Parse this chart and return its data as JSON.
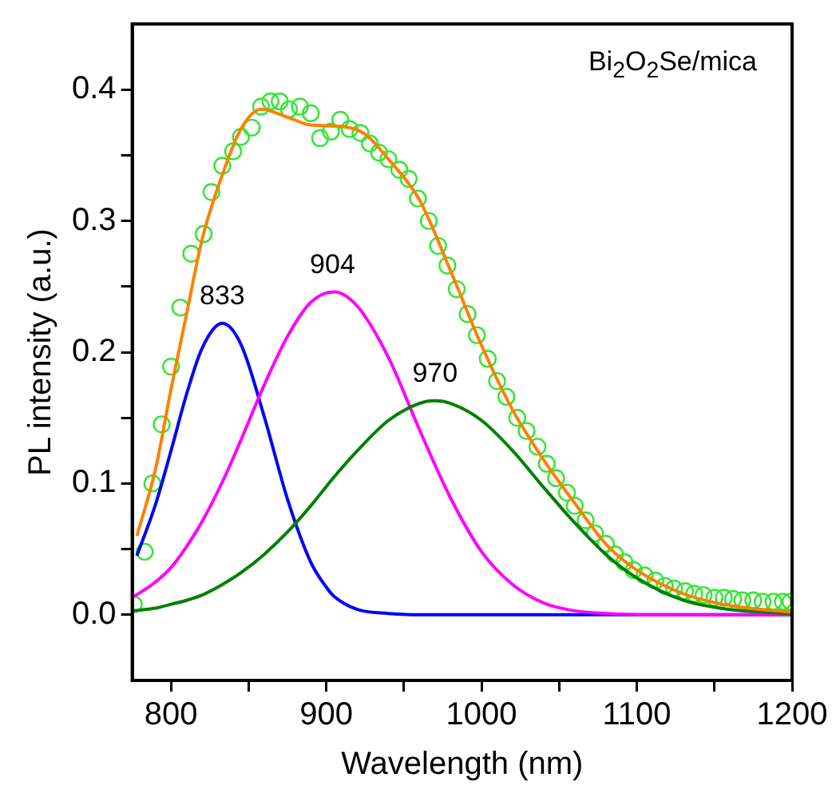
{
  "chart_data": {
    "type": "line",
    "xlabel": "Wavelength (nm)",
    "ylabel": "PL intensity (a.u.)",
    "xlim": [
      775,
      1200
    ],
    "ylim": [
      -0.05,
      0.45
    ],
    "xticks": [
      800,
      {
        "value": 850,
        "label": null
      },
      900,
      {
        "value": 950,
        "label": null
      },
      1000,
      {
        "value": 1050,
        "label": null
      },
      1100,
      {
        "value": 1150,
        "label": null
      },
      1200
    ],
    "yticks": [
      {
        "value": 0,
        "label": "0.0"
      },
      {
        "value": 0.05,
        "label": null
      },
      0.1,
      {
        "value": 0.15,
        "label": null
      },
      0.2,
      {
        "value": 0.25,
        "label": null
      },
      0.3,
      {
        "value": 0.35,
        "label": null
      },
      0.4
    ],
    "grid": false,
    "legend": false,
    "annotations": [
      "Bi$_{2}$O$_{2}$Se/mica",
      {
        "text": "833",
        "x": 833,
        "y": 0.222
      },
      {
        "text": "904",
        "x": 904,
        "y": 0.246
      },
      {
        "text": "970",
        "x": 970,
        "y": 0.163
      }
    ],
    "series": [
      {
        "type": "scatter",
        "marker": "circle",
        "color": "#33e633",
        "x": [
          776,
          783,
          788,
          794,
          800,
          806,
          813,
          821,
          826,
          833,
          840,
          845,
          852,
          858,
          864,
          870,
          876,
          883,
          890,
          896,
          903,
          909,
          915,
          922,
          928,
          934,
          940,
          947,
          953,
          959,
          966,
          972,
          978,
          984,
          991,
          997,
          1004,
          1010,
          1016,
          1023,
          1029,
          1036,
          1042,
          1048,
          1055,
          1060,
          1067,
          1073,
          1080,
          1086,
          1092,
          1098,
          1105,
          1112,
          1118,
          1124,
          1131,
          1137,
          1143,
          1150,
          1156,
          1162,
          1168,
          1175,
          1181,
          1188,
          1194,
          1199
        ],
        "values": [
          0.008,
          0.048,
          0.1,
          0.145,
          0.189,
          0.234,
          0.275,
          0.29,
          0.322,
          0.342,
          0.353,
          0.364,
          0.371,
          0.387,
          0.391,
          0.391,
          0.385,
          0.387,
          0.382,
          0.363,
          0.368,
          0.377,
          0.37,
          0.367,
          0.359,
          0.352,
          0.347,
          0.339,
          0.332,
          0.317,
          0.3,
          0.281,
          0.266,
          0.248,
          0.229,
          0.213,
          0.195,
          0.178,
          0.166,
          0.15,
          0.14,
          0.128,
          0.115,
          0.104,
          0.093,
          0.083,
          0.072,
          0.062,
          0.054,
          0.046,
          0.04,
          0.034,
          0.03,
          0.026,
          0.022,
          0.02,
          0.018,
          0.016,
          0.015,
          0.013,
          0.013,
          0.012,
          0.011,
          0.011,
          0.01,
          0.01,
          0.01,
          0.01
        ]
      },
      {
        "marker": "none",
        "color": "#0000ff",
        "x": [
          778,
          790,
          800,
          810,
          820,
          833,
          845,
          860,
          875,
          890,
          900,
          905,
          920,
          940,
          960,
          1000,
          1100,
          1200
        ],
        "values": [
          0.045,
          0.084,
          0.125,
          0.168,
          0.203,
          0.222,
          0.206,
          0.151,
          0.088,
          0.04,
          0.021,
          0.014,
          0.004,
          0.001,
          0,
          0,
          0,
          0
        ]
      },
      {
        "marker": "none",
        "color": "#ff00ff",
        "x": [
          775,
          790,
          800,
          810,
          820,
          833,
          845,
          860,
          875,
          890,
          905,
          920,
          940,
          960,
          980,
          1000,
          1020,
          1040,
          1060,
          1080,
          1100,
          1200
        ],
        "values": [
          0.013,
          0.025,
          0.036,
          0.052,
          0.071,
          0.101,
          0.133,
          0.175,
          0.212,
          0.238,
          0.246,
          0.235,
          0.196,
          0.141,
          0.089,
          0.048,
          0.023,
          0.009,
          0.003,
          0.001,
          0,
          0
        ]
      },
      {
        "marker": "none",
        "color": "#008000",
        "x": [
          775,
          790,
          800,
          810,
          820,
          833,
          845,
          860,
          875,
          890,
          905,
          920,
          940,
          960,
          970,
          980,
          1000,
          1020,
          1040,
          1060,
          1080,
          1100,
          1130,
          1160,
          1200
        ],
        "values": [
          0.003,
          0.005,
          0.008,
          0.011,
          0.015,
          0.023,
          0.032,
          0.046,
          0.063,
          0.083,
          0.105,
          0.125,
          0.148,
          0.161,
          0.163,
          0.161,
          0.148,
          0.125,
          0.097,
          0.07,
          0.046,
          0.028,
          0.011,
          0.004,
          0.001
        ]
      },
      {
        "marker": "none",
        "color": "#ff8000",
        "x": [
          778,
          790,
          800,
          810,
          820,
          833,
          845,
          858,
          875,
          890,
          910,
          925,
          940,
          960,
          980,
          1000,
          1020,
          1040,
          1060,
          1080,
          1100,
          1130,
          1160,
          1200
        ],
        "values": [
          0.06,
          0.111,
          0.172,
          0.229,
          0.286,
          0.335,
          0.37,
          0.385,
          0.379,
          0.373,
          0.372,
          0.366,
          0.347,
          0.316,
          0.262,
          0.205,
          0.156,
          0.118,
          0.085,
          0.054,
          0.034,
          0.016,
          0.007,
          0.002
        ]
      }
    ]
  }
}
